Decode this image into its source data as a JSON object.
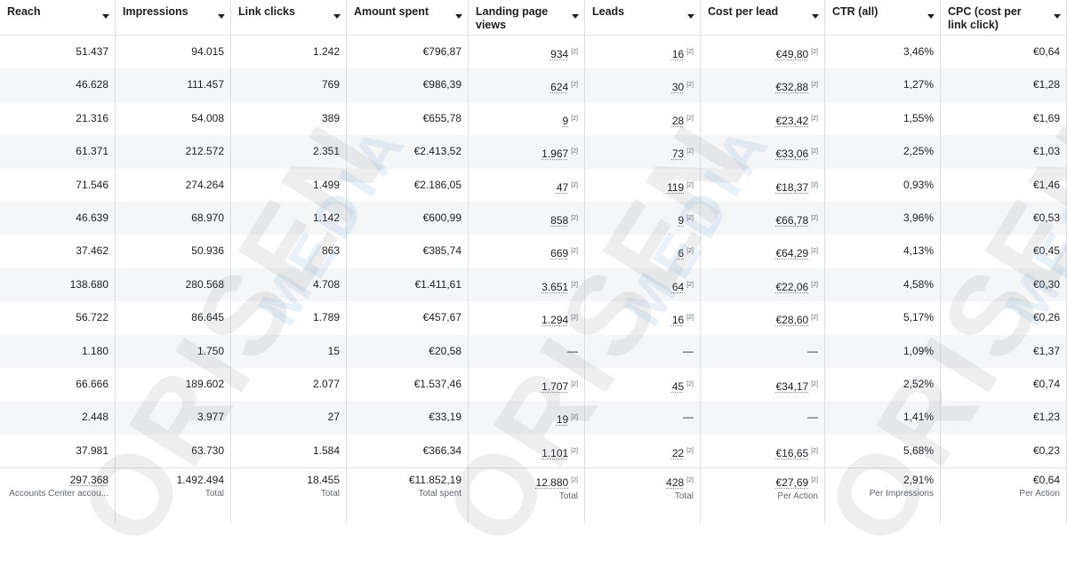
{
  "table": {
    "columns": [
      {
        "label": "Reach"
      },
      {
        "label": "Impressions"
      },
      {
        "label": "Link clicks"
      },
      {
        "label": "Amount spent"
      },
      {
        "label": "Landing page views"
      },
      {
        "label": "Leads"
      },
      {
        "label": "Cost per lead"
      },
      {
        "label": "CTR (all)"
      },
      {
        "label": "CPC (cost per link click)"
      }
    ],
    "footnote_marker": "[2]",
    "rows": [
      {
        "cells": [
          {
            "v": "51.437"
          },
          {
            "v": "94.015"
          },
          {
            "v": "1.242"
          },
          {
            "v": "€796,87"
          },
          {
            "v": "934",
            "fn": true
          },
          {
            "v": "16",
            "fn": true
          },
          {
            "v": "€49,80",
            "fn": true
          },
          {
            "v": "3,46%"
          },
          {
            "v": "€0,64"
          }
        ]
      },
      {
        "cells": [
          {
            "v": "46.628"
          },
          {
            "v": "111.457"
          },
          {
            "v": "769"
          },
          {
            "v": "€986,39"
          },
          {
            "v": "624",
            "fn": true
          },
          {
            "v": "30",
            "fn": true
          },
          {
            "v": "€32,88",
            "fn": true
          },
          {
            "v": "1,27%"
          },
          {
            "v": "€1,28"
          }
        ]
      },
      {
        "cells": [
          {
            "v": "21.316"
          },
          {
            "v": "54.008"
          },
          {
            "v": "389"
          },
          {
            "v": "€655,78"
          },
          {
            "v": "9",
            "fn": true
          },
          {
            "v": "28",
            "fn": true
          },
          {
            "v": "€23,42",
            "fn": true
          },
          {
            "v": "1,55%"
          },
          {
            "v": "€1,69"
          }
        ]
      },
      {
        "cells": [
          {
            "v": "61.371"
          },
          {
            "v": "212.572"
          },
          {
            "v": "2.351"
          },
          {
            "v": "€2.413,52"
          },
          {
            "v": "1.967",
            "fn": true
          },
          {
            "v": "73",
            "fn": true
          },
          {
            "v": "€33,06",
            "fn": true
          },
          {
            "v": "2,25%"
          },
          {
            "v": "€1,03"
          }
        ]
      },
      {
        "cells": [
          {
            "v": "71.546"
          },
          {
            "v": "274.264"
          },
          {
            "v": "1.499"
          },
          {
            "v": "€2.186,05"
          },
          {
            "v": "47",
            "fn": true
          },
          {
            "v": "119",
            "fn": true
          },
          {
            "v": "€18,37",
            "fn": true
          },
          {
            "v": "0,93%"
          },
          {
            "v": "€1,46"
          }
        ]
      },
      {
        "cells": [
          {
            "v": "46.639"
          },
          {
            "v": "68.970"
          },
          {
            "v": "1.142"
          },
          {
            "v": "€600,99"
          },
          {
            "v": "858",
            "fn": true
          },
          {
            "v": "9",
            "fn": true
          },
          {
            "v": "€66,78",
            "fn": true
          },
          {
            "v": "3,96%"
          },
          {
            "v": "€0,53"
          }
        ]
      },
      {
        "cells": [
          {
            "v": "37.462"
          },
          {
            "v": "50.936"
          },
          {
            "v": "863"
          },
          {
            "v": "€385,74"
          },
          {
            "v": "669",
            "fn": true
          },
          {
            "v": "6",
            "fn": true
          },
          {
            "v": "€64,29",
            "fn": true
          },
          {
            "v": "4,13%"
          },
          {
            "v": "€0,45"
          }
        ]
      },
      {
        "cells": [
          {
            "v": "138.680"
          },
          {
            "v": "280.568"
          },
          {
            "v": "4.708"
          },
          {
            "v": "€1.411,61"
          },
          {
            "v": "3.651",
            "fn": true
          },
          {
            "v": "64",
            "fn": true
          },
          {
            "v": "€22,06",
            "fn": true
          },
          {
            "v": "4,58%"
          },
          {
            "v": "€0,30"
          }
        ]
      },
      {
        "cells": [
          {
            "v": "56.722"
          },
          {
            "v": "86.645"
          },
          {
            "v": "1.789"
          },
          {
            "v": "€457,67"
          },
          {
            "v": "1.294",
            "fn": true
          },
          {
            "v": "16",
            "fn": true
          },
          {
            "v": "€28,60",
            "fn": true
          },
          {
            "v": "5,17%"
          },
          {
            "v": "€0,26"
          }
        ]
      },
      {
        "cells": [
          {
            "v": "1.180"
          },
          {
            "v": "1.750"
          },
          {
            "v": "15"
          },
          {
            "v": "€20,58"
          },
          {
            "v": "—"
          },
          {
            "v": "—"
          },
          {
            "v": "—"
          },
          {
            "v": "1,09%"
          },
          {
            "v": "€1,37"
          }
        ]
      },
      {
        "cells": [
          {
            "v": "66.666"
          },
          {
            "v": "189.602"
          },
          {
            "v": "2.077"
          },
          {
            "v": "€1.537,46"
          },
          {
            "v": "1.707",
            "fn": true
          },
          {
            "v": "45",
            "fn": true
          },
          {
            "v": "€34,17",
            "fn": true
          },
          {
            "v": "2,52%"
          },
          {
            "v": "€0,74"
          }
        ]
      },
      {
        "cells": [
          {
            "v": "2.448"
          },
          {
            "v": "3.977"
          },
          {
            "v": "27"
          },
          {
            "v": "€33,19"
          },
          {
            "v": "19",
            "fn": true
          },
          {
            "v": "—"
          },
          {
            "v": "—"
          },
          {
            "v": "1,41%"
          },
          {
            "v": "€1,23"
          }
        ]
      },
      {
        "cells": [
          {
            "v": "37.981"
          },
          {
            "v": "63.730"
          },
          {
            "v": "1.584"
          },
          {
            "v": "€366,34"
          },
          {
            "v": "1.101",
            "fn": true
          },
          {
            "v": "22",
            "fn": true
          },
          {
            "v": "€16,65",
            "fn": true
          },
          {
            "v": "5,68%"
          },
          {
            "v": "€0,23"
          }
        ]
      }
    ],
    "totals": [
      {
        "v": "297.368",
        "sub": "Accounts Center accou..."
      },
      {
        "v": "1.492.494",
        "sub": "Total"
      },
      {
        "v": "18.455",
        "sub": "Total"
      },
      {
        "v": "€11.852,19",
        "sub": "Total spent"
      },
      {
        "v": "12.880",
        "fn": true,
        "sub": "Total"
      },
      {
        "v": "428",
        "fn": true,
        "sub": "Total"
      },
      {
        "v": "€27,69",
        "fn": true,
        "sub": "Per Action"
      },
      {
        "v": "2,91%",
        "sub": "Per Impressions"
      },
      {
        "v": "€0,64",
        "sub": "Per Action"
      }
    ]
  },
  "watermark": {
    "big": "ORISEN",
    "small": "MEDIA"
  },
  "colors": {
    "row_stripe": "#f5f6f7",
    "border": "#dcdfe3",
    "text": "#1c1e21",
    "muted": "#606770"
  }
}
